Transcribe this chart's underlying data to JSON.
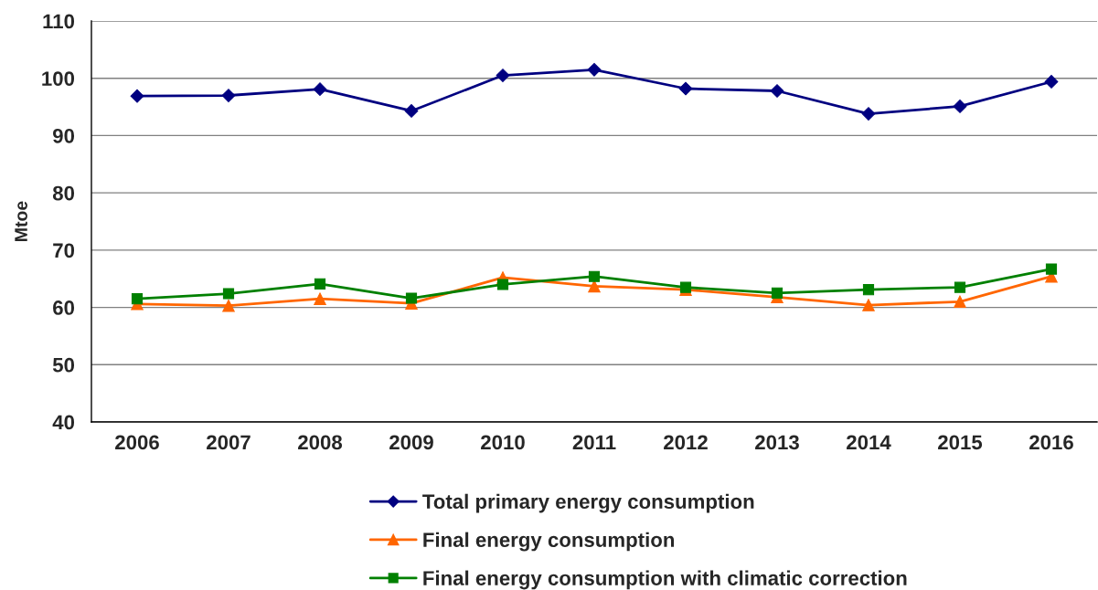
{
  "chart_data": {
    "type": "line",
    "ylabel": "Mtoe",
    "categories": [
      "2006",
      "2007",
      "2008",
      "2009",
      "2010",
      "2011",
      "2012",
      "2013",
      "2014",
      "2015",
      "2016"
    ],
    "series": [
      {
        "name": "Total primary energy consumption",
        "color": "#000080",
        "marker": "diamond",
        "values": [
          96.9,
          97.0,
          98.1,
          94.3,
          100.5,
          101.5,
          98.2,
          97.8,
          93.8,
          95.1,
          99.4
        ]
      },
      {
        "name": "Final energy consumption",
        "color": "#ff6600",
        "marker": "triangle",
        "values": [
          60.6,
          60.3,
          61.5,
          60.7,
          65.2,
          63.7,
          63.1,
          61.8,
          60.4,
          61.0,
          65.4
        ]
      },
      {
        "name": "Final energy consumption with climatic correction",
        "color": "#008000",
        "marker": "square",
        "values": [
          61.5,
          62.4,
          64.1,
          61.6,
          64.0,
          65.4,
          63.5,
          62.5,
          63.1,
          63.5,
          66.7
        ]
      }
    ],
    "ylim": [
      40,
      110
    ],
    "yticks": [
      40,
      50,
      60,
      70,
      80,
      90,
      100,
      110
    ],
    "grid": "y",
    "legend": "bottom",
    "line_style": "solid"
  }
}
